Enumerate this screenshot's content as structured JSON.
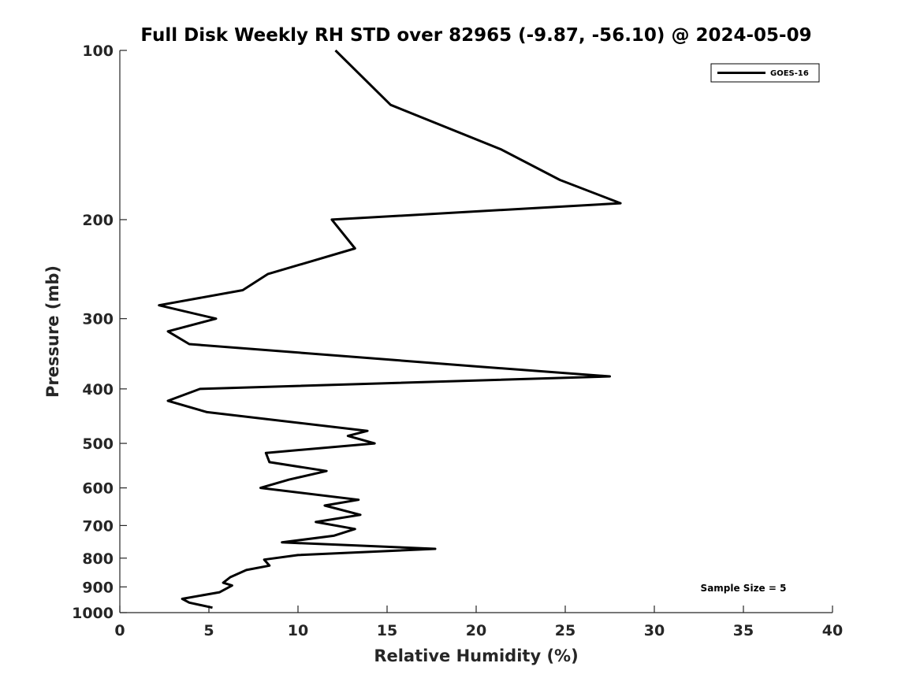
{
  "chart_data": {
    "type": "line",
    "title": "Full Disk Weekly RH STD over 82965 (-9.87, -56.10) @ 2024-05-09",
    "xlabel": "Relative Humidity (%)",
    "ylabel": "Pressure (mb)",
    "xlim": [
      0,
      40
    ],
    "ylim": [
      1000,
      100
    ],
    "y_scale": "log",
    "y_inverted": true,
    "grid": false,
    "x_ticks": [
      0,
      5,
      10,
      15,
      20,
      25,
      30,
      35,
      40
    ],
    "x_tick_labels": [
      "0",
      "5",
      "10",
      "15",
      "20",
      "25",
      "30",
      "35",
      "40"
    ],
    "y_ticks": [
      100,
      200,
      300,
      400,
      500,
      600,
      700,
      800,
      900,
      1000
    ],
    "y_tick_labels": [
      "100",
      "200",
      "300",
      "400",
      "500",
      "600",
      "700",
      "800",
      "900",
      "1000"
    ],
    "legend_position": "top-right",
    "annotation": "Sample Size = 5",
    "series": [
      {
        "name": "GOES-16",
        "color": "#000000",
        "points": [
          [
            12.1,
            100
          ],
          [
            15.2,
            125
          ],
          [
            21.4,
            150
          ],
          [
            24.7,
            170
          ],
          [
            28.1,
            187
          ],
          [
            11.9,
            200
          ],
          [
            13.2,
            225
          ],
          [
            8.3,
            250
          ],
          [
            6.9,
            267
          ],
          [
            2.2,
            284
          ],
          [
            5.4,
            300
          ],
          [
            2.7,
            316
          ],
          [
            3.9,
            333
          ],
          [
            20.1,
            365
          ],
          [
            27.5,
            380
          ],
          [
            4.5,
            400
          ],
          [
            2.7,
            420
          ],
          [
            4.9,
            440
          ],
          [
            13.9,
            475
          ],
          [
            12.8,
            485
          ],
          [
            14.3,
            500
          ],
          [
            8.2,
            520
          ],
          [
            8.4,
            540
          ],
          [
            11.6,
            560
          ],
          [
            9.5,
            580
          ],
          [
            7.9,
            600
          ],
          [
            13.4,
            630
          ],
          [
            11.5,
            645
          ],
          [
            13.5,
            670
          ],
          [
            11.0,
            690
          ],
          [
            13.2,
            710
          ],
          [
            12.0,
            730
          ],
          [
            9.1,
            750
          ],
          [
            17.7,
            770
          ],
          [
            10.0,
            790
          ],
          [
            8.1,
            805
          ],
          [
            8.4,
            825
          ],
          [
            7.1,
            840
          ],
          [
            6.2,
            865
          ],
          [
            5.8,
            885
          ],
          [
            6.3,
            895
          ],
          [
            5.6,
            920
          ],
          [
            3.5,
            945
          ],
          [
            3.9,
            960
          ],
          [
            5.2,
            980
          ]
        ]
      }
    ]
  }
}
